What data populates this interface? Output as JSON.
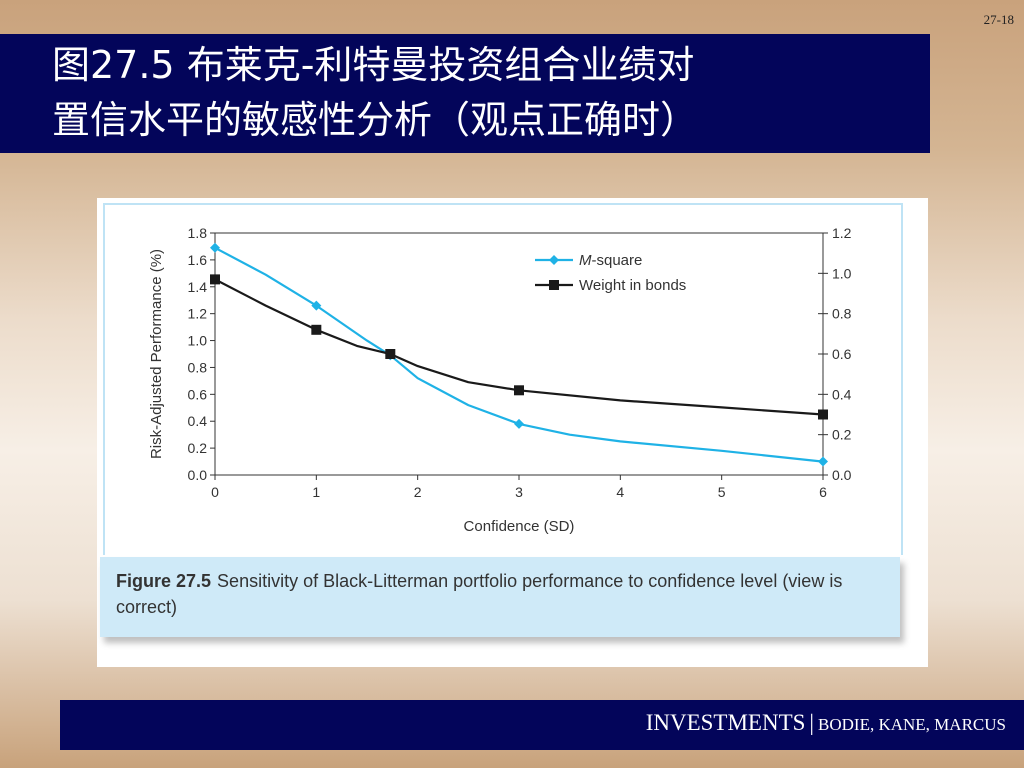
{
  "slide_number": "27-18",
  "title": {
    "line1": "图27.5  布莱克-利特曼投资组合业绩对",
    "line2": "置信水平的敏感性分析（观点正确时）"
  },
  "caption": {
    "label": "Figure 27.5",
    "text": "Sensitivity of Black-Litterman portfolio performance to confidence level (view is correct)"
  },
  "footer": {
    "main": "INVESTMENTS",
    "separator": "|",
    "authors": "BODIE, KANE, MARCUS"
  },
  "colors": {
    "title_bar": "#03055a",
    "m_square": "#1fb2e6",
    "weight_in_bonds": "#1a1a1a"
  },
  "chart_data": {
    "type": "line",
    "xlabel": "Confidence (SD)",
    "ylabel": "Risk-Adjusted Performance (%)",
    "xlim": [
      0,
      6
    ],
    "ylim": [
      0,
      1.8
    ],
    "y2lim": [
      0,
      1.2
    ],
    "x_ticks": [
      "0",
      "1",
      "2",
      "3",
      "4",
      "5",
      "6"
    ],
    "y_ticks": [
      "0.0",
      "0.2",
      "0.4",
      "0.6",
      "0.8",
      "1.0",
      "1.2",
      "1.4",
      "1.6",
      "1.8"
    ],
    "y2_ticks": [
      "0.0",
      "0.2",
      "0.4",
      "0.6",
      "0.8",
      "1.0",
      "1.2"
    ],
    "legend_position": "top-right",
    "grid": false,
    "series": [
      {
        "name_prefix": "M",
        "name_suffix": "-square",
        "axis": "left",
        "marker": "diamond",
        "x": [
          0,
          0.5,
          1,
          1.5,
          1.73,
          2,
          2.5,
          3,
          3.5,
          4,
          5,
          6
        ],
        "y": [
          1.69,
          1.49,
          1.26,
          1.0,
          0.89,
          0.72,
          0.52,
          0.38,
          0.3,
          0.25,
          0.18,
          0.1
        ],
        "marker_x": [
          0,
          1,
          1.73,
          3,
          6
        ],
        "marker_y": [
          1.69,
          1.26,
          0.89,
          0.38,
          0.1
        ]
      },
      {
        "name": "Weight in bonds",
        "axis": "right",
        "marker": "square",
        "x": [
          0,
          0.5,
          1,
          1.4,
          1.73,
          2,
          2.5,
          3,
          4,
          5,
          6
        ],
        "y": [
          0.97,
          0.84,
          0.72,
          0.64,
          0.6,
          0.54,
          0.46,
          0.42,
          0.37,
          0.335,
          0.3
        ],
        "marker_x": [
          0,
          1,
          1.73,
          3,
          6
        ],
        "marker_y": [
          0.97,
          0.72,
          0.6,
          0.42,
          0.3
        ]
      }
    ]
  }
}
